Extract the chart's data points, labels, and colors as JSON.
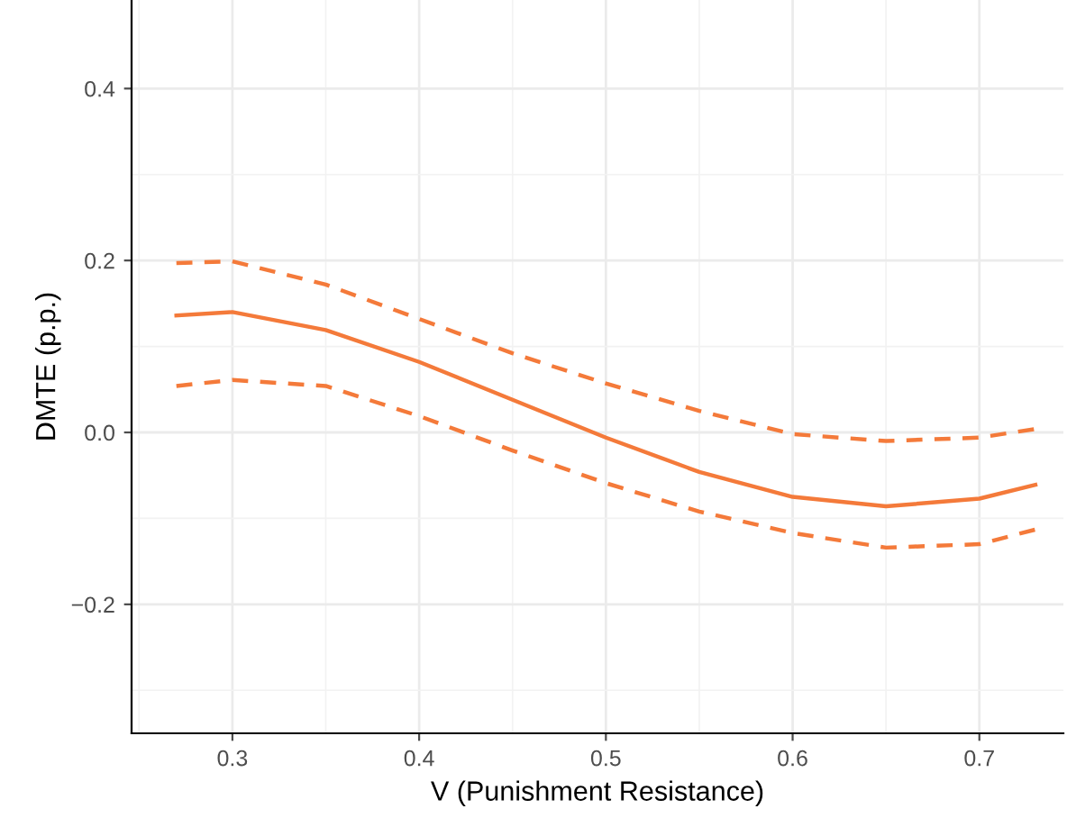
{
  "chart_data": {
    "type": "line",
    "xlabel": "V (Punishment Resistance)",
    "ylabel": "DMTE (p.p.)",
    "x": [
      0.27,
      0.3,
      0.35,
      0.4,
      0.45,
      0.5,
      0.55,
      0.6,
      0.65,
      0.7,
      0.73
    ],
    "series": [
      {
        "color": "#f47a3a",
        "line_style": "solid",
        "values": [
          0.136,
          0.14,
          0.119,
          0.082,
          0.038,
          -0.006,
          -0.046,
          -0.075,
          -0.086,
          -0.077,
          -0.061
        ]
      },
      {
        "color": "#f47a3a",
        "line_style": "dashed",
        "values": [
          0.197,
          0.199,
          0.172,
          0.132,
          0.092,
          0.057,
          0.025,
          -0.002,
          -0.01,
          -0.006,
          0.004
        ]
      },
      {
        "color": "#f47a3a",
        "line_style": "dashed",
        "values": [
          0.054,
          0.061,
          0.054,
          0.019,
          -0.021,
          -0.059,
          -0.092,
          -0.117,
          -0.134,
          -0.13,
          -0.113
        ]
      }
    ],
    "xlim": [
      0.246,
      0.745
    ],
    "ylim": [
      -0.35,
      0.503
    ],
    "xticks": [
      0.3,
      0.4,
      0.5,
      0.6,
      0.7
    ],
    "yticks": [
      {
        "value": -0.2,
        "label": "−0.2"
      },
      {
        "value": 0.0,
        "label": "0.0"
      },
      {
        "value": 0.2,
        "label": "0.2"
      },
      {
        "value": 0.4,
        "label": "0.4"
      }
    ],
    "grid": true,
    "marker": "none"
  }
}
